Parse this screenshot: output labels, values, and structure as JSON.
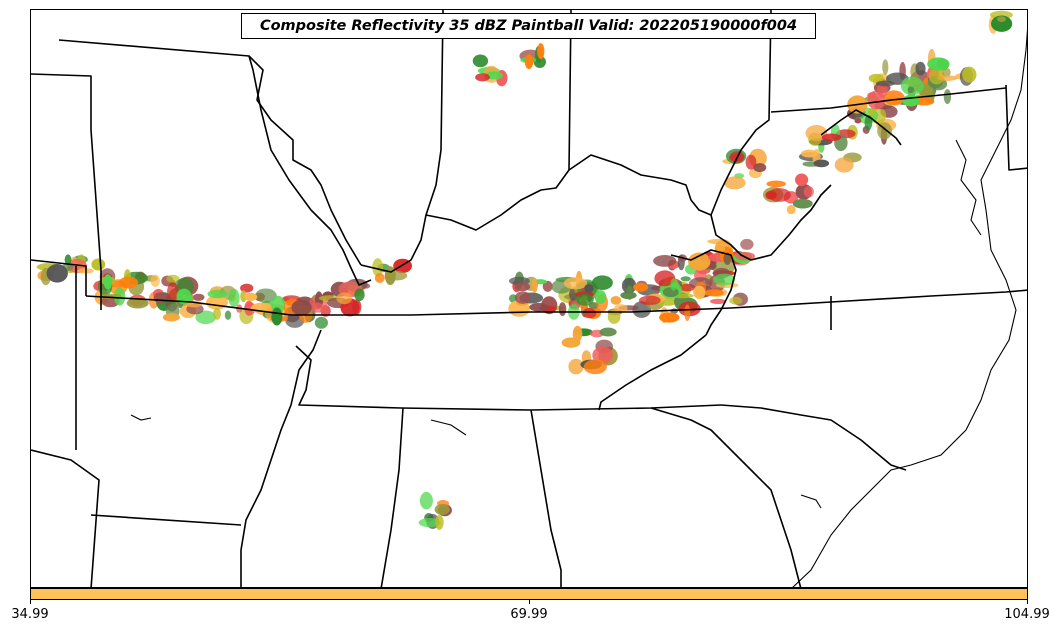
{
  "title": "Composite Reflectivity 35 dBZ Paintball Valid: 202205190000f004",
  "colorbar": {
    "color": "#ffc15a",
    "ticks": [
      "34.99",
      "69.99",
      "104.99"
    ]
  },
  "paint_colors": [
    "#d62728",
    "#f25c5c",
    "#ff7f0e",
    "#f5a63a",
    "#ffb74d",
    "#bcbd22",
    "#9a9a3c",
    "#4fd84f",
    "#2e8b2e",
    "#5e8c4a",
    "#8c4a4a",
    "#a05050",
    "#555555"
  ],
  "map_layers": [
    "state-boundaries",
    "coastline",
    "reflectivity-blobs"
  ]
}
